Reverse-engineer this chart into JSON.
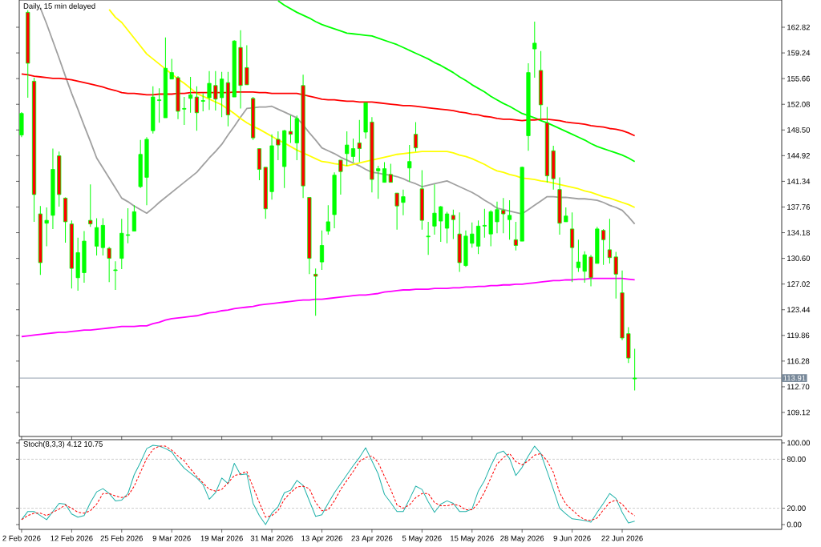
{
  "chart_data": [
    {
      "type": "candlestick",
      "title": "Daily, 15 min delayed",
      "categories": [
        null,
        null,
        null,
        null,
        null,
        null,
        null,
        null,
        null,
        null,
        null,
        null,
        null,
        null,
        null,
        null,
        null,
        null,
        null,
        null,
        null,
        null,
        null,
        null,
        null,
        null,
        null,
        null,
        null,
        null,
        null,
        null,
        null,
        null,
        null,
        null,
        null,
        null,
        null,
        null,
        null,
        null,
        null,
        null,
        null,
        null,
        null,
        null,
        null,
        null,
        null,
        null,
        null,
        null,
        null,
        null,
        null,
        null,
        null,
        null,
        null,
        null,
        null,
        null,
        null,
        null,
        null,
        null,
        null,
        null,
        null,
        null,
        null,
        null,
        null,
        null,
        null,
        null,
        null,
        null,
        null,
        null,
        null,
        null,
        null,
        null,
        null,
        null,
        null,
        null,
        null,
        null,
        null,
        null,
        null,
        null,
        null,
        null,
        null
      ],
      "ohlc": [
        [
          147.8,
          151.0,
          147.5,
          150.8
        ],
        [
          164.9,
          165.2,
          153.0,
          157.8
        ],
        [
          155.3,
          155.8,
          135.7,
          139.5
        ],
        [
          136.8,
          137.9,
          128.3,
          130.0
        ],
        [
          135.5,
          137.7,
          132.3,
          135.9
        ],
        [
          136.6,
          145.9,
          134.7,
          143.0
        ],
        [
          144.9,
          145.5,
          137.8,
          139.5
        ],
        [
          139.0,
          139.1,
          132.8,
          135.7
        ],
        [
          135.4,
          135.9,
          126.4,
          129.2
        ],
        [
          127.9,
          133.5,
          126.1,
          131.4
        ],
        [
          128.6,
          134.4,
          127.2,
          133.0
        ],
        [
          135.9,
          140.9,
          135.0,
          135.4
        ],
        [
          132.3,
          136.2,
          131.0,
          134.9
        ],
        [
          132.1,
          136.2,
          131.0,
          135.2
        ],
        [
          132.0,
          132.2,
          127.3,
          130.6
        ],
        [
          128.9,
          130.2,
          126.2,
          129.0
        ],
        [
          130.6,
          136.1,
          129.1,
          134.1
        ],
        [
          133.8,
          137.6,
          132.7,
          133.9
        ],
        [
          134.4,
          138.0,
          134.4,
          137.1
        ],
        [
          140.6,
          147.1,
          140.4,
          145.1
        ],
        [
          141.9,
          147.5,
          138.0,
          147.2
        ],
        [
          148.4,
          154.6,
          148.0,
          153.1
        ],
        [
          152.6,
          154.3,
          149.5,
          152.7
        ],
        [
          150.2,
          161.4,
          150.2,
          157.1
        ],
        [
          155.6,
          158.4,
          155.6,
          156.5
        ],
        [
          155.8,
          156.0,
          150.0,
          151.1
        ],
        [
          151.4,
          153.1,
          149.2,
          151.5
        ],
        [
          152.9,
          155.9,
          150.9,
          153.4
        ],
        [
          153.1,
          154.6,
          148.4,
          150.9
        ],
        [
          152.5,
          153.6,
          151.1,
          152.6
        ],
        [
          153.0,
          156.7,
          151.3,
          155.0
        ],
        [
          154.7,
          156.7,
          151.2,
          152.8
        ],
        [
          153.0,
          156.6,
          150.3,
          155.6
        ],
        [
          155.1,
          156.6,
          149.0,
          150.6
        ],
        [
          153.1,
          161.0,
          153.1,
          160.9
        ],
        [
          160.0,
          162.4,
          151.5,
          154.7
        ],
        [
          157.2,
          160.3,
          154.8,
          154.8
        ],
        [
          152.9,
          153.1,
          147.1,
          147.4
        ],
        [
          145.9,
          145.9,
          141.5,
          143.0
        ],
        [
          143.3,
          143.3,
          136.1,
          137.5
        ],
        [
          139.9,
          147.9,
          138.8,
          146.3
        ],
        [
          147.2,
          148.3,
          144.3,
          146.4
        ],
        [
          143.4,
          148.5,
          140.4,
          148.4
        ],
        [
          148.3,
          150.5,
          146.7,
          147.9
        ],
        [
          146.7,
          150.5,
          144.3,
          150.1
        ],
        [
          154.7,
          156.2,
          139.0,
          140.7
        ],
        [
          139.1,
          139.1,
          128.4,
          130.6
        ],
        [
          128.4,
          129.2,
          122.6,
          128.1
        ],
        [
          130.1,
          134.5,
          129.0,
          132.4
        ],
        [
          134.4,
          138.0,
          133.9,
          135.7
        ],
        [
          136.7,
          142.6,
          134.8,
          142.2
        ],
        [
          144.3,
          144.3,
          139.5,
          142.7
        ],
        [
          145.2,
          148.3,
          143.5,
          146.4
        ],
        [
          144.8,
          147.3,
          144.0,
          145.9
        ],
        [
          146.7,
          149.9,
          144.0,
          145.9
        ],
        [
          148.2,
          152.3,
          147.3,
          152.3
        ],
        [
          149.6,
          150.3,
          139.8,
          141.6
        ],
        [
          142.8,
          143.5,
          138.9,
          143.1
        ],
        [
          141.2,
          144.0,
          141.2,
          143.1
        ],
        [
          142.3,
          143.8,
          141.2,
          141.2
        ],
        [
          139.7,
          139.7,
          134.6,
          137.9
        ],
        [
          138.4,
          140.2,
          136.6,
          139.2
        ],
        [
          143.2,
          146.4,
          141.3,
          144.1
        ],
        [
          147.9,
          149.6,
          145.5,
          146.0
        ],
        [
          140.3,
          142.9,
          134.6,
          135.9
        ],
        [
          133.6,
          135.7,
          131.1,
          133.7
        ],
        [
          135.1,
          140.9,
          133.9,
          136.9
        ],
        [
          135.8,
          137.9,
          132.9,
          137.8
        ],
        [
          134.8,
          137.1,
          132.7,
          136.8
        ],
        [
          136.6,
          137.4,
          133.3,
          136.0
        ],
        [
          134.0,
          137.0,
          128.7,
          130.0
        ],
        [
          129.6,
          134.5,
          129.4,
          133.7
        ],
        [
          132.7,
          135.6,
          132.1,
          134.0
        ],
        [
          132.3,
          135.9,
          131.2,
          135.1
        ],
        [
          135.1,
          137.5,
          133.5,
          135.2
        ],
        [
          134.0,
          137.3,
          132.3,
          137.1
        ],
        [
          135.7,
          138.5,
          134.1,
          137.4
        ],
        [
          137.3,
          139.0,
          134.1,
          136.8
        ],
        [
          136.0,
          138.7,
          133.2,
          136.6
        ],
        [
          133.2,
          135.7,
          131.7,
          132.4
        ],
        [
          133.0,
          143.4,
          133.0,
          143.3
        ],
        [
          147.7,
          157.8,
          145.6,
          156.5
        ],
        [
          159.8,
          163.6,
          155.8,
          160.6
        ],
        [
          156.8,
          159.5,
          149.8,
          152.0
        ],
        [
          149.5,
          151.7,
          141.2,
          142.1
        ],
        [
          145.6,
          146.3,
          140.2,
          141.7
        ],
        [
          140.2,
          141.9,
          133.9,
          135.5
        ],
        [
          135.7,
          137.7,
          135.7,
          136.5
        ],
        [
          134.7,
          137.0,
          127.3,
          132.1
        ],
        [
          129.3,
          133.2,
          128.7,
          130.1
        ],
        [
          128.8,
          131.6,
          127.2,
          131.1
        ],
        [
          130.8,
          131.1,
          126.7,
          127.9
        ],
        [
          129.9,
          135.0,
          129.9,
          134.7
        ],
        [
          134.5,
          134.7,
          129.7,
          133.2
        ],
        [
          131.8,
          136.1,
          129.9,
          130.7
        ],
        [
          130.8,
          131.5,
          125.0,
          128.4
        ],
        [
          125.8,
          128.9,
          119.2,
          119.5
        ],
        [
          120.1,
          121.0,
          116.0,
          116.7
        ],
        [
          113.8,
          118.0,
          112.2,
          113.91
        ]
      ],
      "series": [
        {
          "type": "line",
          "color": "#a0a0a0",
          "values": [
            null,
            null,
            null,
            165.5,
            163.3,
            160.9,
            158.5,
            156.0,
            153.6,
            151.4,
            149.1,
            146.9,
            144.6,
            143.2,
            141.8,
            140.4,
            139.0,
            138.5,
            137.9,
            137.4,
            136.9,
            137.6,
            138.4,
            139.1,
            139.8,
            140.5,
            141.2,
            141.9,
            142.6,
            143.6,
            144.6,
            145.5,
            146.5,
            147.8,
            149.0,
            150.3,
            151.5,
            151.6,
            151.7,
            151.7,
            151.8,
            151.4,
            151.0,
            150.6,
            150.2,
            149.2,
            148.1,
            147.1,
            146.0,
            145.6,
            145.2,
            144.7,
            144.3,
            143.9,
            143.5,
            143.0,
            142.6,
            142.5,
            142.3,
            142.2,
            142.0,
            141.7,
            141.3,
            141.0,
            140.6,
            140.8,
            141.0,
            141.2,
            141.4,
            141.0,
            140.6,
            140.2,
            139.8,
            139.3,
            138.7,
            138.2,
            137.6,
            137.4,
            137.2,
            137.0,
            136.8,
            137.4,
            138.0,
            138.6,
            139.2,
            139.2,
            139.1,
            139.1,
            139.0,
            138.9,
            138.9,
            138.8,
            138.7,
            138.4,
            138.0,
            137.7,
            137.3,
            136.4,
            135.4
          ]
        },
        {
          "type": "line",
          "color": "#ffff00",
          "values": [
            null,
            null,
            null,
            null,
            null,
            null,
            null,
            null,
            null,
            null,
            null,
            null,
            null,
            null,
            165.3,
            164.2,
            163.5,
            162.4,
            161.3,
            160.2,
            159.1,
            158.4,
            157.7,
            157.0,
            156.3,
            155.6,
            155.0,
            154.3,
            153.6,
            153.2,
            152.8,
            152.4,
            152.0,
            151.4,
            150.8,
            150.1,
            149.5,
            149.0,
            148.6,
            148.1,
            147.6,
            147.1,
            146.7,
            146.2,
            145.7,
            145.3,
            144.9,
            144.5,
            144.1,
            144.0,
            143.8,
            143.7,
            143.5,
            143.7,
            143.9,
            144.1,
            144.3,
            144.5,
            144.7,
            144.9,
            145.1,
            145.2,
            145.3,
            145.4,
            145.5,
            145.5,
            145.5,
            145.5,
            145.5,
            145.3,
            145.0,
            144.8,
            144.5,
            144.1,
            143.7,
            143.2,
            142.8,
            142.6,
            142.3,
            142.1,
            141.8,
            141.7,
            141.6,
            141.4,
            141.3,
            141.1,
            140.9,
            140.7,
            140.5,
            140.3,
            140.0,
            139.8,
            139.5,
            139.2,
            139.0,
            138.7,
            138.4,
            138.1,
            137.7
          ]
        },
        {
          "type": "line",
          "color": "#00ff00",
          "values": [
            null,
            null,
            null,
            null,
            null,
            null,
            null,
            null,
            null,
            null,
            null,
            null,
            null,
            null,
            null,
            null,
            null,
            null,
            null,
            null,
            null,
            null,
            null,
            null,
            null,
            null,
            null,
            null,
            null,
            null,
            null,
            null,
            null,
            null,
            null,
            null,
            null,
            null,
            null,
            null,
            null,
            166.5,
            165.9,
            165.4,
            164.9,
            164.5,
            164.1,
            163.6,
            163.2,
            162.9,
            162.6,
            162.3,
            162.0,
            161.9,
            161.8,
            161.7,
            161.6,
            161.3,
            161.0,
            160.7,
            160.4,
            160.0,
            159.6,
            159.2,
            158.8,
            158.4,
            157.9,
            157.5,
            157.0,
            156.5,
            155.9,
            155.4,
            154.8,
            154.3,
            153.8,
            153.2,
            152.7,
            152.2,
            151.8,
            151.3,
            150.8,
            150.5,
            150.2,
            149.8,
            149.5,
            149.1,
            148.7,
            148.3,
            147.9,
            147.5,
            147.1,
            146.6,
            146.2,
            145.9,
            145.6,
            145.3,
            145.0,
            144.6,
            144.1
          ]
        },
        {
          "type": "line",
          "color": "#ff0000",
          "values": [
            156.3,
            156.2,
            156.0,
            155.9,
            155.8,
            155.7,
            155.7,
            155.6,
            155.5,
            155.3,
            155.1,
            154.9,
            154.7,
            154.5,
            154.2,
            154.0,
            153.7,
            153.6,
            153.6,
            153.5,
            153.4,
            153.4,
            153.5,
            153.5,
            153.5,
            153.6,
            153.6,
            153.7,
            153.7,
            153.7,
            153.7,
            153.7,
            153.7,
            153.7,
            153.8,
            153.8,
            153.8,
            153.8,
            153.7,
            153.7,
            153.6,
            153.6,
            153.6,
            153.6,
            153.6,
            153.4,
            153.2,
            153.0,
            152.8,
            152.7,
            152.7,
            152.6,
            152.5,
            152.5,
            152.4,
            152.4,
            152.4,
            152.3,
            152.2,
            152.1,
            152.0,
            151.9,
            151.9,
            151.8,
            151.7,
            151.6,
            151.5,
            151.4,
            151.3,
            151.2,
            151.0,
            150.9,
            150.7,
            150.6,
            150.4,
            150.3,
            150.1,
            150.0,
            150.0,
            149.9,
            149.8,
            149.9,
            149.9,
            150.0,
            150.0,
            149.9,
            149.8,
            149.6,
            149.5,
            149.4,
            149.3,
            149.1,
            149.0,
            148.9,
            148.7,
            148.6,
            148.4,
            148.1,
            147.7
          ]
        },
        {
          "type": "line",
          "color": "#ff00ff",
          "values": [
            119.7,
            119.8,
            119.9,
            120.0,
            120.1,
            120.2,
            120.3,
            120.3,
            120.4,
            120.5,
            120.6,
            120.6,
            120.7,
            120.8,
            120.9,
            121.0,
            121.1,
            121.1,
            121.1,
            121.2,
            121.2,
            121.5,
            121.7,
            122.0,
            122.2,
            122.3,
            122.4,
            122.5,
            122.6,
            122.8,
            123.0,
            123.1,
            123.3,
            123.4,
            123.6,
            123.7,
            123.8,
            123.9,
            124.1,
            124.2,
            124.3,
            124.4,
            124.5,
            124.6,
            124.7,
            124.8,
            124.8,
            124.9,
            124.9,
            125.0,
            125.1,
            125.2,
            125.3,
            125.4,
            125.5,
            125.5,
            125.6,
            125.7,
            125.9,
            126.0,
            126.1,
            126.2,
            126.2,
            126.3,
            126.3,
            126.3,
            126.4,
            126.4,
            126.4,
            126.5,
            126.5,
            126.6,
            126.6,
            126.7,
            126.7,
            126.8,
            126.8,
            126.9,
            126.9,
            127.0,
            127.0,
            127.1,
            127.2,
            127.3,
            127.4,
            127.5,
            127.5,
            127.6,
            127.6,
            127.7,
            127.7,
            127.8,
            127.8,
            127.8,
            127.8,
            127.8,
            127.8,
            127.7,
            127.6
          ]
        }
      ],
      "ylim": [
        105.77,
        166.62
      ],
      "yticks": [
        {
          "value": 109.12,
          "label": "109.12"
        },
        {
          "value": 112.7,
          "label": "112.70"
        },
        {
          "value": 116.28,
          "label": "116.28"
        },
        {
          "value": 119.86,
          "label": "119.86"
        },
        {
          "value": 123.44,
          "label": "123.44"
        },
        {
          "value": 127.02,
          "label": "127.02"
        },
        {
          "value": 130.6,
          "label": "130.60"
        },
        {
          "value": 134.18,
          "label": "134.18"
        },
        {
          "value": 137.76,
          "label": "137.76"
        },
        {
          "value": 141.34,
          "label": "141.34"
        },
        {
          "value": 144.92,
          "label": "144.92"
        },
        {
          "value": 148.5,
          "label": "148.50"
        },
        {
          "value": 152.08,
          "label": "152.08"
        },
        {
          "value": 155.66,
          "label": "155.66"
        },
        {
          "value": 159.24,
          "label": "159.24"
        },
        {
          "value": 162.82,
          "label": "162.82"
        }
      ],
      "ref_lines": [
        {
          "axis": "y",
          "value": 113.91,
          "label": "113.91",
          "color": "#778899",
          "line_style": "solid"
        }
      ],
      "tick_labels": "y"
    },
    {
      "type": "line",
      "title": "Stoch(8,3,3) 4.12 10.75",
      "categories": [
        "2 Feb 2026",
        null,
        null,
        null,
        null,
        null,
        null,
        null,
        "12 Feb 2026",
        null,
        null,
        null,
        null,
        null,
        null,
        null,
        "25 Feb 2026",
        null,
        null,
        null,
        null,
        null,
        null,
        null,
        "9 Mar 2026",
        null,
        null,
        null,
        null,
        null,
        null,
        null,
        "19 Mar 2026",
        null,
        null,
        null,
        null,
        null,
        null,
        null,
        "31 Mar 2026",
        null,
        null,
        null,
        null,
        null,
        null,
        null,
        "13 Apr 2026",
        null,
        null,
        null,
        null,
        null,
        null,
        null,
        "23 Apr 2026",
        null,
        null,
        null,
        null,
        null,
        null,
        null,
        "5 May 2026",
        null,
        null,
        null,
        null,
        null,
        null,
        null,
        "15 May 2026",
        null,
        null,
        null,
        null,
        null,
        null,
        null,
        "28 May 2026",
        null,
        null,
        null,
        null,
        null,
        null,
        null,
        "9 Jun 2026",
        null,
        null,
        null,
        null,
        null,
        null,
        null,
        "22 Jun 2026",
        null,
        null
      ],
      "series": [
        {
          "type": "line",
          "color": "#20b2aa",
          "line_style": "solid",
          "values": [
            6,
            16,
            16,
            11,
            6,
            16,
            26,
            25,
            13,
            9,
            11,
            27,
            40,
            44,
            38,
            29,
            30,
            38,
            61,
            76,
            93,
            97,
            96,
            93,
            89,
            78,
            69,
            63,
            57,
            49,
            31,
            39,
            57,
            50,
            75,
            61,
            62,
            26,
            11,
            0,
            14,
            22,
            39,
            42,
            54,
            48,
            29,
            10,
            12,
            26,
            39,
            50,
            61,
            72,
            82,
            94,
            78,
            62,
            37,
            27,
            16,
            16,
            31,
            47,
            43,
            28,
            15,
            25,
            29,
            26,
            16,
            16,
            19,
            41,
            54,
            72,
            87,
            90,
            81,
            60,
            70,
            84,
            96,
            87,
            65,
            43,
            20,
            13,
            7,
            6,
            5,
            3,
            15,
            26,
            38,
            32,
            15,
            2,
            4.12
          ]
        },
        {
          "type": "line",
          "color": "#ff0000",
          "line_style": "dashed",
          "values": [
            6,
            11,
            14,
            14,
            11,
            15,
            19,
            24,
            20,
            15,
            14,
            17,
            25,
            38,
            38,
            35,
            33,
            35,
            47,
            64,
            81,
            92,
            96,
            96,
            91,
            84,
            78,
            68,
            59,
            51,
            43,
            41,
            43,
            51,
            60,
            62,
            65,
            46,
            27,
            9,
            11,
            17,
            31,
            39,
            46,
            47,
            44,
            27,
            17,
            18,
            29,
            43,
            54,
            65,
            77,
            82,
            84,
            76,
            59,
            43,
            24,
            20,
            24,
            33,
            38,
            38,
            27,
            23,
            23,
            25,
            23,
            18,
            18,
            26,
            40,
            57,
            74,
            82,
            87,
            77,
            73,
            78,
            85,
            87,
            78,
            64,
            39,
            25,
            18,
            11,
            6,
            5,
            8,
            18,
            27,
            30,
            25,
            16,
            10.75
          ]
        }
      ],
      "ylim": [
        -5.9,
        103.9
      ],
      "yticks": [
        {
          "value": 0,
          "label": "0.00"
        },
        {
          "value": 20,
          "label": "20.00"
        },
        {
          "value": 80,
          "label": "80.00"
        },
        {
          "value": 100,
          "label": "100.00"
        }
      ],
      "ref_lines": [
        {
          "axis": "y",
          "value": 20,
          "color": "#c0c0c0",
          "line_style": "dashed"
        },
        {
          "axis": "y",
          "value": 80,
          "color": "#c0c0c0",
          "line_style": "dashed"
        }
      ]
    }
  ]
}
